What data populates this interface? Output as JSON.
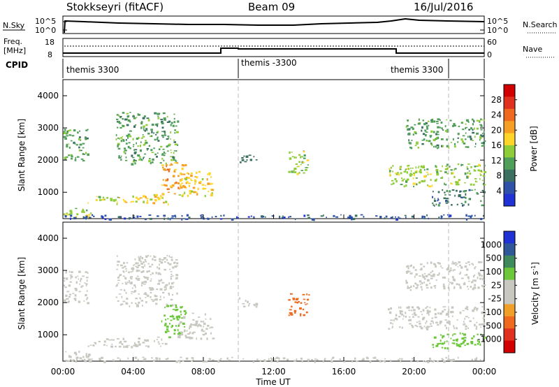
{
  "header": {
    "station": "Stokkseyri (fitACF)",
    "beam": "Beam 09",
    "date": "16/Jul/2016"
  },
  "noise_panel": {
    "left_label": "N.Sky",
    "left_ticks": [
      "10^5",
      "10^0"
    ],
    "right_ticks": [
      "10^5",
      "10^0"
    ],
    "right_label": "N.Search"
  },
  "freq_panel": {
    "left_label_line1": "Freq.",
    "left_label_line2": "[MHz]",
    "left_ticks": [
      "18",
      "8"
    ],
    "right_ticks": [
      "60",
      "0"
    ],
    "right_label": "Nave"
  },
  "cpid": {
    "label": "CPID",
    "segments": [
      {
        "text": "themis 3300"
      },
      {
        "text": "themis -3300"
      },
      {
        "text": "themis 3300"
      }
    ]
  },
  "x_axis": {
    "title": "Time UT",
    "ticks": [
      "00:00",
      "04:00",
      "08:00",
      "12:00",
      "16:00",
      "20:00",
      "00:00"
    ],
    "tick_values": [
      0,
      4,
      8,
      12,
      16,
      20,
      24
    ]
  },
  "power_panel": {
    "ylabel": "Slant Range [km]",
    "yticks": [
      {
        "value": 1000,
        "label": "1000"
      },
      {
        "value": 2000,
        "label": "2000"
      },
      {
        "value": 3000,
        "label": "3000"
      },
      {
        "value": 4000,
        "label": "4000"
      }
    ],
    "colorbar": {
      "label": "Power [dB]",
      "ticks": [
        "4",
        "8",
        "12",
        "16",
        "20",
        "24",
        "28"
      ],
      "colors": [
        "#1f33d4",
        "#2d52a8",
        "#3b7060",
        "#4f9e5a",
        "#8fcd38",
        "#ffd52a",
        "#f5a025",
        "#ef6a1e",
        "#e03020",
        "#d00000"
      ]
    }
  },
  "velocity_panel": {
    "ylabel": "Slant Range [km]",
    "yticks": [
      {
        "value": 1000,
        "label": "1000"
      },
      {
        "value": 2000,
        "label": "2000"
      },
      {
        "value": 3000,
        "label": "3000"
      },
      {
        "value": 4000,
        "label": "4000"
      }
    ],
    "colorbar": {
      "label": "Velocity [m s",
      "label_sup": "-1",
      "label_tail": "]",
      "ticks": [
        "1000",
        "500",
        "100",
        "25",
        "-25",
        "-100",
        "-500",
        "-1000"
      ],
      "colors": [
        "#1f33d4",
        "#2f5898",
        "#3f8a5a",
        "#6cc83a",
        "#c8c8c0",
        "#c8c8c0",
        "#f0a028",
        "#ef6a1e",
        "#e03020",
        "#d00000"
      ]
    }
  },
  "chart_data": {
    "type": "heatmap",
    "title": "Stokkseyri (fitACF)  Beam 09  16/Jul/2016",
    "xlabel": "Time UT",
    "ylabel": "Slant Range [km]",
    "xlim": [
      0,
      24
    ],
    "ylim": [
      180,
      4500
    ],
    "echo_regions": [
      {
        "t0": 0.0,
        "t1": 1.6,
        "r0": 200,
        "r1": 520,
        "power": 14,
        "velocity": 60
      },
      {
        "t0": 0.0,
        "t1": 1.4,
        "r0": 2000,
        "r1": 3000,
        "power": 12,
        "velocity": 0
      },
      {
        "t0": 1.4,
        "t1": 3.2,
        "r0": 650,
        "r1": 900,
        "power": 14,
        "velocity": 0
      },
      {
        "t0": 3.1,
        "t1": 6.0,
        "r0": 650,
        "r1": 950,
        "power": 18,
        "velocity": 0
      },
      {
        "t0": 3.0,
        "t1": 6.5,
        "r0": 1900,
        "r1": 3500,
        "power": 10,
        "velocity": 0
      },
      {
        "t0": 5.6,
        "t1": 7.0,
        "r0": 950,
        "r1": 1950,
        "power": 20,
        "velocity": 200
      },
      {
        "t0": 6.5,
        "t1": 8.5,
        "r0": 900,
        "r1": 1700,
        "power": 16,
        "velocity": 0
      },
      {
        "t0": 0.0,
        "t1": 24.0,
        "r0": 180,
        "r1": 320,
        "power": 6,
        "velocity": 30
      },
      {
        "t0": 10.0,
        "t1": 11.0,
        "r0": 1900,
        "r1": 2200,
        "power": 8,
        "velocity": 0
      },
      {
        "t0": 12.8,
        "t1": 14.0,
        "r0": 1600,
        "r1": 2300,
        "power": 14,
        "velocity": -150
      },
      {
        "t0": 18.5,
        "t1": 24.0,
        "r0": 1200,
        "r1": 1900,
        "power": 14,
        "velocity": 0
      },
      {
        "t0": 19.5,
        "t1": 24.0,
        "r0": 2400,
        "r1": 3300,
        "power": 10,
        "velocity": 0
      },
      {
        "t0": 21.0,
        "t1": 24.0,
        "r0": 600,
        "r1": 1100,
        "power": 8,
        "velocity": 120
      }
    ]
  }
}
